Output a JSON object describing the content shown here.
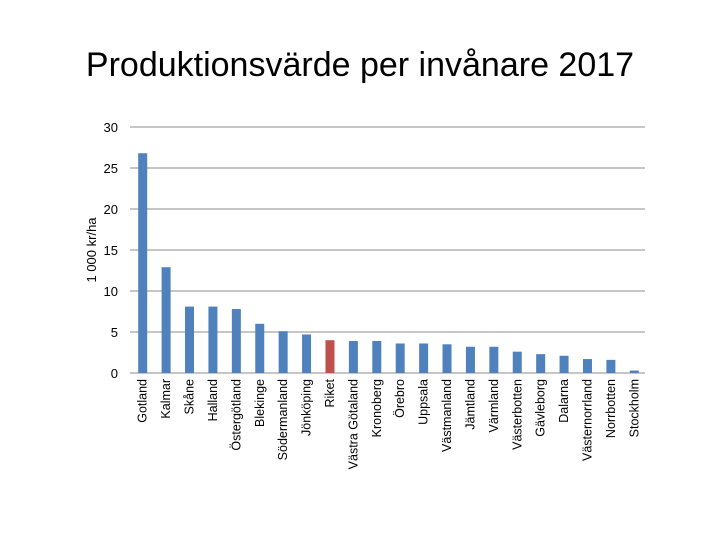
{
  "chart_data": {
    "type": "bar",
    "title": "Produktionsvärde per invånare 2017",
    "xlabel": "",
    "ylabel": "1 000 kr/ha",
    "ylim": [
      0,
      30
    ],
    "yticks": [
      0,
      5,
      10,
      15,
      20,
      25,
      30
    ],
    "grid": true,
    "colors": {
      "default": "#4f81bd",
      "highlight": "#c0504d"
    },
    "highlight": "Riket",
    "categories": [
      "Gotland",
      "Kalmar",
      "Skåne",
      "Halland",
      "Östergötland",
      "Blekinge",
      "Södermanland",
      "Jönköping",
      "Riket",
      "Västra Götaland",
      "Kronoberg",
      "Örebro",
      "Uppsala",
      "Västmanland",
      "Jämtland",
      "Värmland",
      "Västerbotten",
      "Gävleborg",
      "Dalarna",
      "Västernorrland",
      "Norrbotten",
      "Stockholm"
    ],
    "values": [
      26.8,
      12.9,
      8.1,
      8.1,
      7.8,
      6.0,
      5.1,
      4.7,
      4.0,
      3.9,
      3.9,
      3.6,
      3.6,
      3.5,
      3.2,
      3.2,
      2.6,
      2.3,
      2.1,
      1.7,
      1.6,
      0.3
    ]
  }
}
